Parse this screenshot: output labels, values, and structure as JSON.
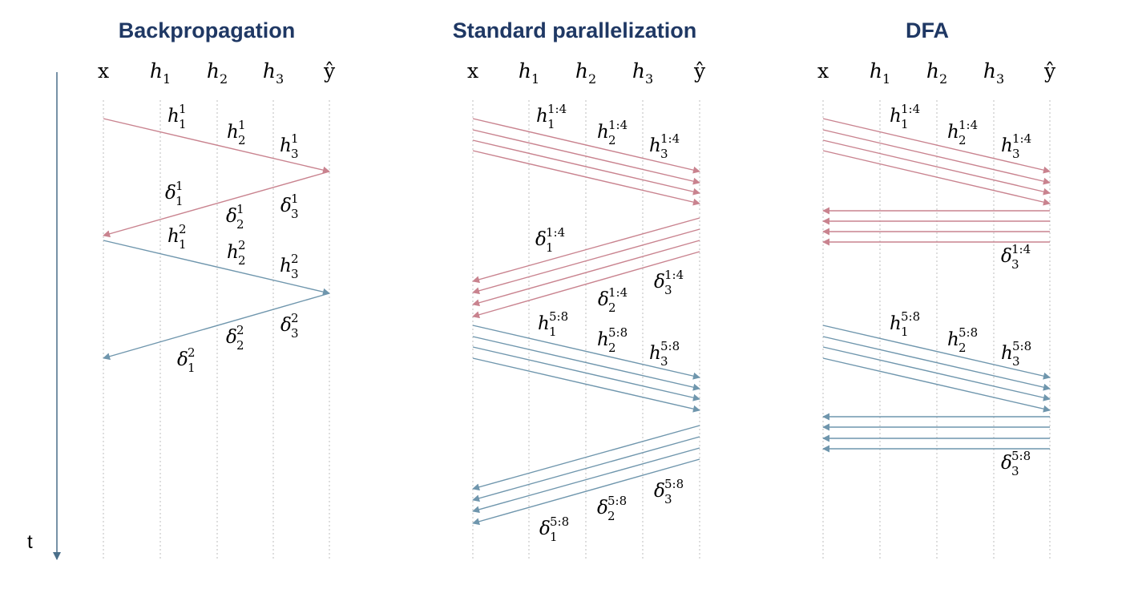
{
  "colors": {
    "forward": "#c9838f",
    "backward": "#6f96ad",
    "title": "#1f3864",
    "gridline": "#c8c8c8",
    "axis": "#4a6f8a"
  },
  "time_axis": {
    "label": "t"
  },
  "panels": [
    {
      "id": "backpropagation",
      "title": "Backpropagation",
      "columns": [
        {
          "base": "x"
        },
        {
          "base": "h",
          "sub": "1"
        },
        {
          "base": "h",
          "sub": "2"
        },
        {
          "base": "h",
          "sub": "3"
        },
        {
          "base": "ŷ"
        }
      ],
      "annotations": [
        {
          "sym": "h",
          "sub": "1",
          "sup": "1"
        },
        {
          "sym": "h",
          "sub": "2",
          "sup": "1"
        },
        {
          "sym": "h",
          "sub": "3",
          "sup": "1"
        },
        {
          "sym": "δ",
          "sub": "1",
          "sup": "1"
        },
        {
          "sym": "δ",
          "sub": "2",
          "sup": "1"
        },
        {
          "sym": "δ",
          "sub": "3",
          "sup": "1"
        },
        {
          "sym": "h",
          "sub": "1",
          "sup": "2"
        },
        {
          "sym": "h",
          "sub": "2",
          "sup": "2"
        },
        {
          "sym": "h",
          "sub": "3",
          "sup": "2"
        },
        {
          "sym": "δ",
          "sub": "1",
          "sup": "2"
        },
        {
          "sym": "δ",
          "sub": "2",
          "sup": "2"
        },
        {
          "sym": "δ",
          "sub": "3",
          "sup": "2"
        }
      ]
    },
    {
      "id": "standard-parallelization",
      "title": "Standard parallelization",
      "columns": [
        {
          "base": "x"
        },
        {
          "base": "h",
          "sub": "1"
        },
        {
          "base": "h",
          "sub": "2"
        },
        {
          "base": "h",
          "sub": "3"
        },
        {
          "base": "ŷ"
        }
      ],
      "annotations": [
        {
          "sym": "h",
          "sub": "1",
          "sup": "1:4"
        },
        {
          "sym": "h",
          "sub": "2",
          "sup": "1:4"
        },
        {
          "sym": "h",
          "sub": "3",
          "sup": "1:4"
        },
        {
          "sym": "δ",
          "sub": "1",
          "sup": "1:4"
        },
        {
          "sym": "δ",
          "sub": "2",
          "sup": "1:4"
        },
        {
          "sym": "δ",
          "sub": "3",
          "sup": "1:4"
        },
        {
          "sym": "h",
          "sub": "1",
          "sup": "5:8"
        },
        {
          "sym": "h",
          "sub": "2",
          "sup": "5:8"
        },
        {
          "sym": "h",
          "sub": "3",
          "sup": "5:8"
        },
        {
          "sym": "δ",
          "sub": "1",
          "sup": "5:8"
        },
        {
          "sym": "δ",
          "sub": "2",
          "sup": "5:8"
        },
        {
          "sym": "δ",
          "sub": "3",
          "sup": "5:8"
        }
      ]
    },
    {
      "id": "dfa",
      "title": "DFA",
      "columns": [
        {
          "base": "x"
        },
        {
          "base": "h",
          "sub": "1"
        },
        {
          "base": "h",
          "sub": "2"
        },
        {
          "base": "h",
          "sub": "3"
        },
        {
          "base": "ŷ"
        }
      ],
      "annotations": [
        {
          "sym": "h",
          "sub": "1",
          "sup": "1:4"
        },
        {
          "sym": "h",
          "sub": "2",
          "sup": "1:4"
        },
        {
          "sym": "h",
          "sub": "3",
          "sup": "1:4"
        },
        {
          "sym": "δ",
          "sub": "3",
          "sup": "1:4"
        },
        {
          "sym": "h",
          "sub": "1",
          "sup": "5:8"
        },
        {
          "sym": "h",
          "sub": "2",
          "sup": "5:8"
        },
        {
          "sym": "h",
          "sub": "3",
          "sup": "5:8"
        },
        {
          "sym": "δ",
          "sub": "3",
          "sup": "5:8"
        }
      ]
    }
  ]
}
